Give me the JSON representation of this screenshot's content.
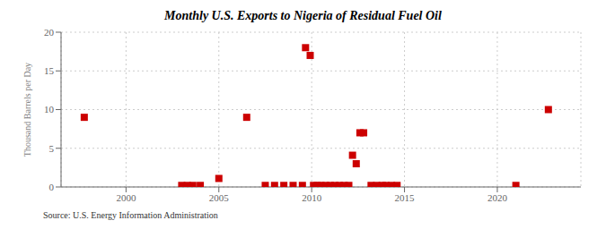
{
  "chart_data": {
    "type": "scatter",
    "title": "Monthly U.S. Exports to Nigeria of Residual Fuel Oil",
    "ylabel": "Thousand Barrels per Day",
    "source": "Source: U.S. Energy Information Administration",
    "color": "#cc0000",
    "marker": "square",
    "grid": true,
    "xlim": [
      1996.5,
      2024.5
    ],
    "ylim": [
      0,
      20
    ],
    "xticks": [
      2000,
      2005,
      2010,
      2015,
      2020
    ],
    "yticks": [
      0,
      5,
      10,
      15,
      20
    ],
    "x": [
      1997.75,
      2003.0,
      2003.3,
      2003.6,
      2004.0,
      2005.0,
      2006.5,
      2007.5,
      2008.0,
      2008.5,
      2009.0,
      2009.5,
      2009.67,
      2009.92,
      2010.1,
      2010.3,
      2010.5,
      2010.75,
      2011.0,
      2011.25,
      2011.5,
      2011.75,
      2012.0,
      2012.2,
      2012.4,
      2012.6,
      2012.8,
      2013.2,
      2013.5,
      2013.8,
      2014.0,
      2014.3,
      2014.6,
      2021.0,
      2022.75
    ],
    "values": [
      9.0,
      0.2,
      0.2,
      0.2,
      0.2,
      1.1,
      9.0,
      0.2,
      0.2,
      0.2,
      0.2,
      0.2,
      18.0,
      17.0,
      0.2,
      0.2,
      0.2,
      0.2,
      0.2,
      0.2,
      0.2,
      0.2,
      0.2,
      4.1,
      3.0,
      7.0,
      7.0,
      0.2,
      0.2,
      0.2,
      0.2,
      0.2,
      0.2,
      0.2,
      10.0
    ]
  }
}
